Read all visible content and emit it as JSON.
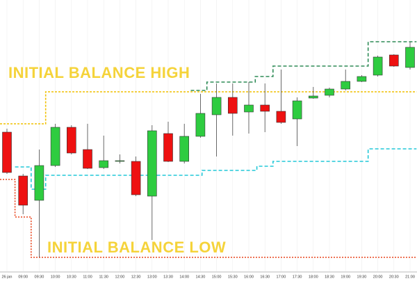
{
  "chart_data": {
    "type": "candlestick",
    "categories": [
      "26 jan",
      "09:00",
      "09:30",
      "10:00",
      "10:30",
      "11:00",
      "11:30",
      "12:00",
      "12:30",
      "13:00",
      "13:30",
      "14:00",
      "14:30",
      "15:00",
      "15:30",
      "16:00",
      "16:30",
      "17:00",
      "17:30",
      "18:00",
      "18:30",
      "19:00",
      "19:30",
      "20:00",
      "20:30",
      "21:00"
    ],
    "open": [
      200,
      137,
      102,
      152,
      207,
      175,
      149,
      159,
      158,
      108,
      198,
      158,
      194,
      225,
      250,
      229,
      239,
      230,
      219,
      249,
      253,
      262,
      273,
      282,
      311,
      293
    ],
    "close": [
      142,
      95,
      152,
      207,
      170,
      148,
      159,
      159,
      110,
      202,
      158,
      194,
      227,
      250,
      227,
      239,
      230,
      214,
      245,
      252,
      262,
      273,
      280,
      308,
      295,
      322
    ],
    "high": [
      205,
      140,
      175,
      212,
      210,
      212,
      195,
      168,
      165,
      210,
      215,
      212,
      255,
      270,
      270,
      272,
      270,
      290,
      250,
      265,
      264,
      290,
      282,
      310,
      312,
      330
    ],
    "low": [
      140,
      82,
      20,
      150,
      168,
      147,
      147,
      155,
      108,
      45,
      157,
      155,
      192,
      165,
      195,
      198,
      200,
      212,
      180,
      248,
      250,
      260,
      272,
      280,
      294,
      290
    ],
    "up_color": "#2ecc40",
    "down_color": "#ee1111",
    "ylim": [
      0,
      390
    ],
    "grid": true,
    "lines": [
      {
        "color": "#f0c000",
        "dash": "3,2",
        "x": [
          -0.43,
          2.4,
          2.4,
          25.4
        ],
        "values": [
          212,
          212,
          258,
          258
        ]
      },
      {
        "color": "#e8421a",
        "dash": "2,2",
        "x": [
          -0.43,
          0.5,
          0.5,
          1.5,
          1.5,
          25.4
        ],
        "values": [
          132,
          132,
          78,
          78,
          20,
          20
        ]
      },
      {
        "color": "#22c8d8",
        "dash": "5,3",
        "x": [
          0.5,
          1.5,
          1.5,
          2.4,
          2.4,
          12.1,
          12.1,
          15.5,
          15.5,
          16.5,
          16.5,
          22.4,
          22.4,
          25.4
        ],
        "values": [
          150,
          150,
          118,
          118,
          138,
          138,
          145,
          145,
          151,
          151,
          158,
          158,
          176,
          176
        ]
      },
      {
        "color": "#2e8b57",
        "dash": "5,3",
        "x": [
          11.4,
          12.4,
          12.4,
          15.4,
          15.4,
          16.5,
          16.5,
          22.4,
          22.4,
          25.4
        ],
        "values": [
          260,
          260,
          272,
          272,
          280,
          280,
          295,
          295,
          330,
          330
        ]
      }
    ],
    "annotations": [
      "INITIAL BALANCE HIGH",
      "INITIAL BALANCE LOW"
    ]
  }
}
